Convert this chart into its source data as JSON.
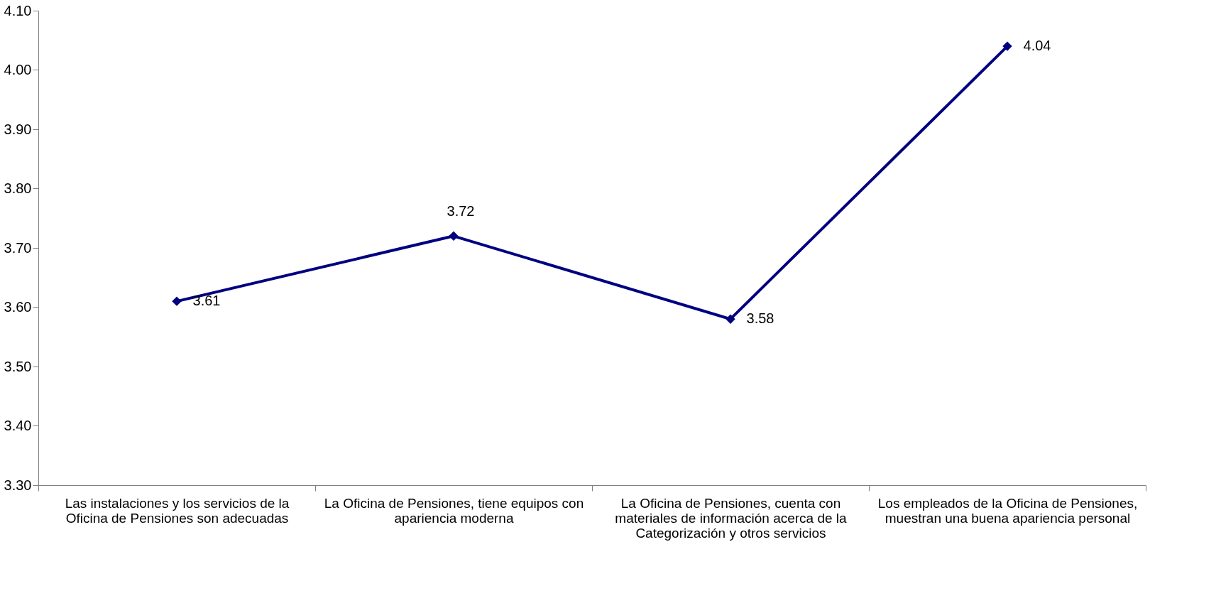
{
  "chart_data": {
    "type": "line",
    "categories": [
      "Las instalaciones y los servicios de la Oficina  de Pensiones son adecuadas",
      "La Oficina de Pensiones, tiene equipos con apariencia moderna",
      "La Oficina de Pensiones, cuenta con materiales  de información acerca de la Categorización y otros servicios",
      "Los empleados de la Oficina de Pensiones, muestran una buena apariencia personal"
    ],
    "series": [
      {
        "color": "#000080",
        "values": [
          3.61,
          3.72,
          3.58,
          4.04
        ]
      }
    ],
    "ylim": [
      3.3,
      4.1
    ],
    "yticks": [
      {
        "value": 3.3,
        "label": "3.30"
      },
      {
        "value": 3.4,
        "label": "3.40"
      },
      {
        "value": 3.5,
        "label": "3.50"
      },
      {
        "value": 3.6,
        "label": "3.60"
      },
      {
        "value": 3.7,
        "label": "3.70"
      },
      {
        "value": 3.8,
        "label": "3.80"
      },
      {
        "value": 3.9,
        "label": "3.90"
      },
      {
        "value": 4.0,
        "label": "4.00"
      },
      {
        "value": 4.1,
        "label": "4.10"
      }
    ],
    "data_labels": true,
    "marker": "diamond",
    "line_style": "solid",
    "grid": false
  }
}
